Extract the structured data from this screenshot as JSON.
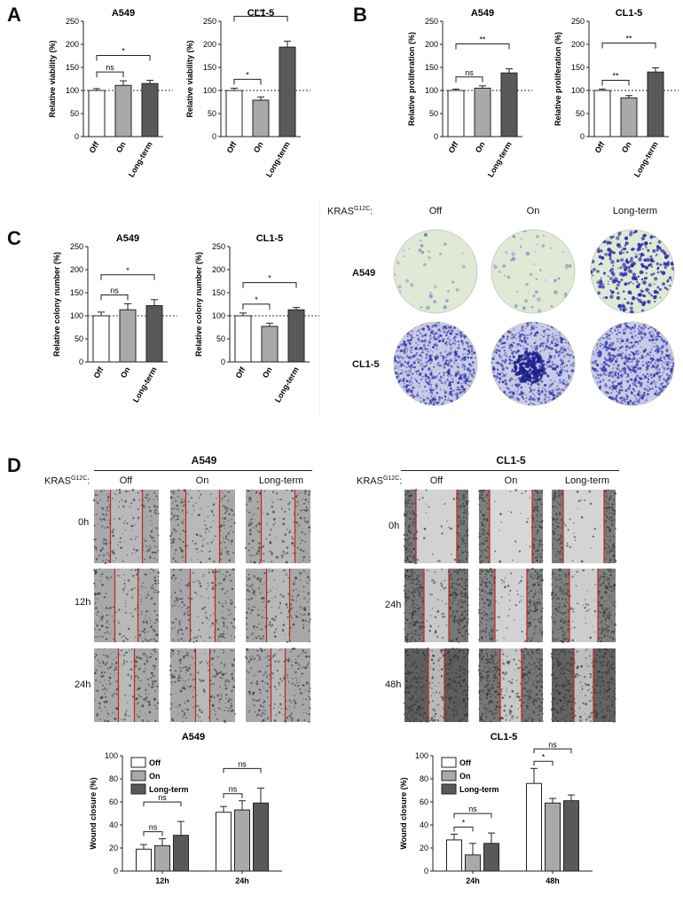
{
  "panel_letters": [
    "A",
    "B",
    "C",
    "D"
  ],
  "colors": {
    "off": "#ffffff",
    "on": "#a9a9a9",
    "long_term": "#595959",
    "bar_stroke": "#222222",
    "scratch_line": "#cc2222",
    "colony_plate": "#dfe9d6",
    "colony_dot": "#2a2fa8"
  },
  "chart_data": [
    {
      "id": "A-A549",
      "type": "bar",
      "title": "A549",
      "ylabel": "Relative viability (%)",
      "categories": [
        "Off",
        "On",
        "Long-term"
      ],
      "values": [
        100,
        111,
        115
      ],
      "errors": [
        4,
        10,
        7
      ],
      "ylim": [
        0,
        250
      ],
      "yticks": [
        0,
        50,
        100,
        150,
        200,
        250
      ],
      "reference_line": 100,
      "annotations": [
        {
          "from": 0,
          "to": 1,
          "label": "ns"
        },
        {
          "from": 0,
          "to": 2,
          "label": "*"
        }
      ]
    },
    {
      "id": "A-CL1-5",
      "type": "bar",
      "title": "CL1-5",
      "ylabel": "Relative viability (%)",
      "categories": [
        "Off",
        "On",
        "Long-term"
      ],
      "values": [
        100,
        79,
        194
      ],
      "errors": [
        5,
        7,
        13
      ],
      "ylim": [
        0,
        250
      ],
      "yticks": [
        0,
        50,
        100,
        150,
        200,
        250
      ],
      "reference_line": 100,
      "annotations": [
        {
          "from": 0,
          "to": 1,
          "label": "*"
        },
        {
          "from": 0,
          "to": 2,
          "label": "***"
        }
      ]
    },
    {
      "id": "B-A549",
      "type": "bar",
      "title": "A549",
      "ylabel": "Relative proliferation (%)",
      "categories": [
        "Off",
        "On",
        "Long-term"
      ],
      "values": [
        100,
        105,
        138
      ],
      "errors": [
        3,
        5,
        9
      ],
      "ylim": [
        0,
        250
      ],
      "yticks": [
        0,
        50,
        100,
        150,
        200,
        250
      ],
      "reference_line": 100,
      "annotations": [
        {
          "from": 0,
          "to": 1,
          "label": "ns"
        },
        {
          "from": 0,
          "to": 2,
          "label": "**"
        }
      ]
    },
    {
      "id": "B-CL1-5",
      "type": "bar",
      "title": "CL1-5",
      "ylabel": "Relative proliferation (%)",
      "categories": [
        "Off",
        "On",
        "Long-term"
      ],
      "values": [
        100,
        84,
        140
      ],
      "errors": [
        3,
        5,
        9
      ],
      "ylim": [
        0,
        250
      ],
      "yticks": [
        0,
        50,
        100,
        150,
        200,
        250
      ],
      "reference_line": 100,
      "annotations": [
        {
          "from": 0,
          "to": 1,
          "label": "**"
        },
        {
          "from": 0,
          "to": 2,
          "label": "**"
        }
      ]
    },
    {
      "id": "C-A549",
      "type": "bar",
      "title": "A549",
      "ylabel": "Relative colony number (%)",
      "categories": [
        "Off",
        "On",
        "Long-term"
      ],
      "values": [
        100,
        113,
        122
      ],
      "errors": [
        8,
        13,
        13
      ],
      "ylim": [
        0,
        250
      ],
      "yticks": [
        0,
        50,
        100,
        150,
        200,
        250
      ],
      "reference_line": 100,
      "annotations": [
        {
          "from": 0,
          "to": 1,
          "label": "ns"
        },
        {
          "from": 0,
          "to": 2,
          "label": "*"
        }
      ]
    },
    {
      "id": "C-CL1-5",
      "type": "bar",
      "title": "CL1-5",
      "ylabel": "Relative colony number (%)",
      "categories": [
        "Off",
        "On",
        "Long-term"
      ],
      "values": [
        100,
        77,
        113
      ],
      "errors": [
        6,
        7,
        5
      ],
      "ylim": [
        0,
        250
      ],
      "yticks": [
        0,
        50,
        100,
        150,
        200,
        250
      ],
      "reference_line": 100,
      "annotations": [
        {
          "from": 0,
          "to": 1,
          "label": "*"
        },
        {
          "from": 0,
          "to": 2,
          "label": "*"
        }
      ]
    },
    {
      "id": "D-A549",
      "type": "bar",
      "title": "A549",
      "ylabel": "Wound closure (%)",
      "categories": [
        "12h",
        "24h"
      ],
      "series": [
        {
          "name": "Off",
          "values": [
            19,
            51
          ],
          "errors": [
            4,
            5
          ]
        },
        {
          "name": "On",
          "values": [
            22,
            53
          ],
          "errors": [
            6,
            8
          ]
        },
        {
          "name": "Long-term",
          "values": [
            31,
            59
          ],
          "errors": [
            12,
            13
          ]
        }
      ],
      "ylim": [
        0,
        100
      ],
      "yticks": [
        0,
        20,
        40,
        60,
        80,
        100
      ],
      "legend": "top-left",
      "annotations": [
        {
          "group": 0,
          "from": 0,
          "to": 1,
          "label": "ns"
        },
        {
          "group": 0,
          "from": 0,
          "to": 2,
          "label": "ns"
        },
        {
          "group": 1,
          "from": 0,
          "to": 1,
          "label": "ns"
        },
        {
          "group": 1,
          "from": 0,
          "to": 2,
          "label": "ns"
        }
      ]
    },
    {
      "id": "D-CL1-5",
      "type": "bar",
      "title": "CL1-5",
      "ylabel": "Wound closure (%)",
      "categories": [
        "24h",
        "48h"
      ],
      "series": [
        {
          "name": "Off",
          "values": [
            27,
            76
          ],
          "errors": [
            5,
            13
          ]
        },
        {
          "name": "On",
          "values": [
            14,
            59
          ],
          "errors": [
            10,
            4
          ]
        },
        {
          "name": "Long-term",
          "values": [
            24,
            61
          ],
          "errors": [
            9,
            5
          ]
        }
      ],
      "ylim": [
        0,
        100
      ],
      "yticks": [
        0,
        20,
        40,
        60,
        80,
        100
      ],
      "legend": "top-left",
      "annotations": [
        {
          "group": 0,
          "from": 0,
          "to": 1,
          "label": "*"
        },
        {
          "group": 0,
          "from": 0,
          "to": 2,
          "label": "ns"
        },
        {
          "group": 1,
          "from": 0,
          "to": 1,
          "label": "*"
        },
        {
          "group": 1,
          "from": 0,
          "to": 2,
          "label": "ns"
        }
      ]
    }
  ],
  "colony_panel": {
    "kras_label": "KRAS",
    "kras_sup": "G12C",
    "kras_colon": ":",
    "columns": [
      "Off",
      "On",
      "Long-term"
    ],
    "rows": [
      "A549",
      "CL1-5"
    ],
    "colony_density": [
      [
        0.02,
        0.04,
        0.35
      ],
      [
        0.9,
        0.85,
        1.0
      ]
    ]
  },
  "wound_panel": {
    "kras_label": "KRAS",
    "kras_sup": "G12C",
    "kras_colon": ":",
    "columns": [
      "Off",
      "On",
      "Long-term"
    ],
    "groups": [
      {
        "title": "A549",
        "rows": [
          "0h",
          "12h",
          "24h"
        ]
      },
      {
        "title": "CL1-5",
        "rows": [
          "0h",
          "24h",
          "48h"
        ]
      }
    ]
  }
}
